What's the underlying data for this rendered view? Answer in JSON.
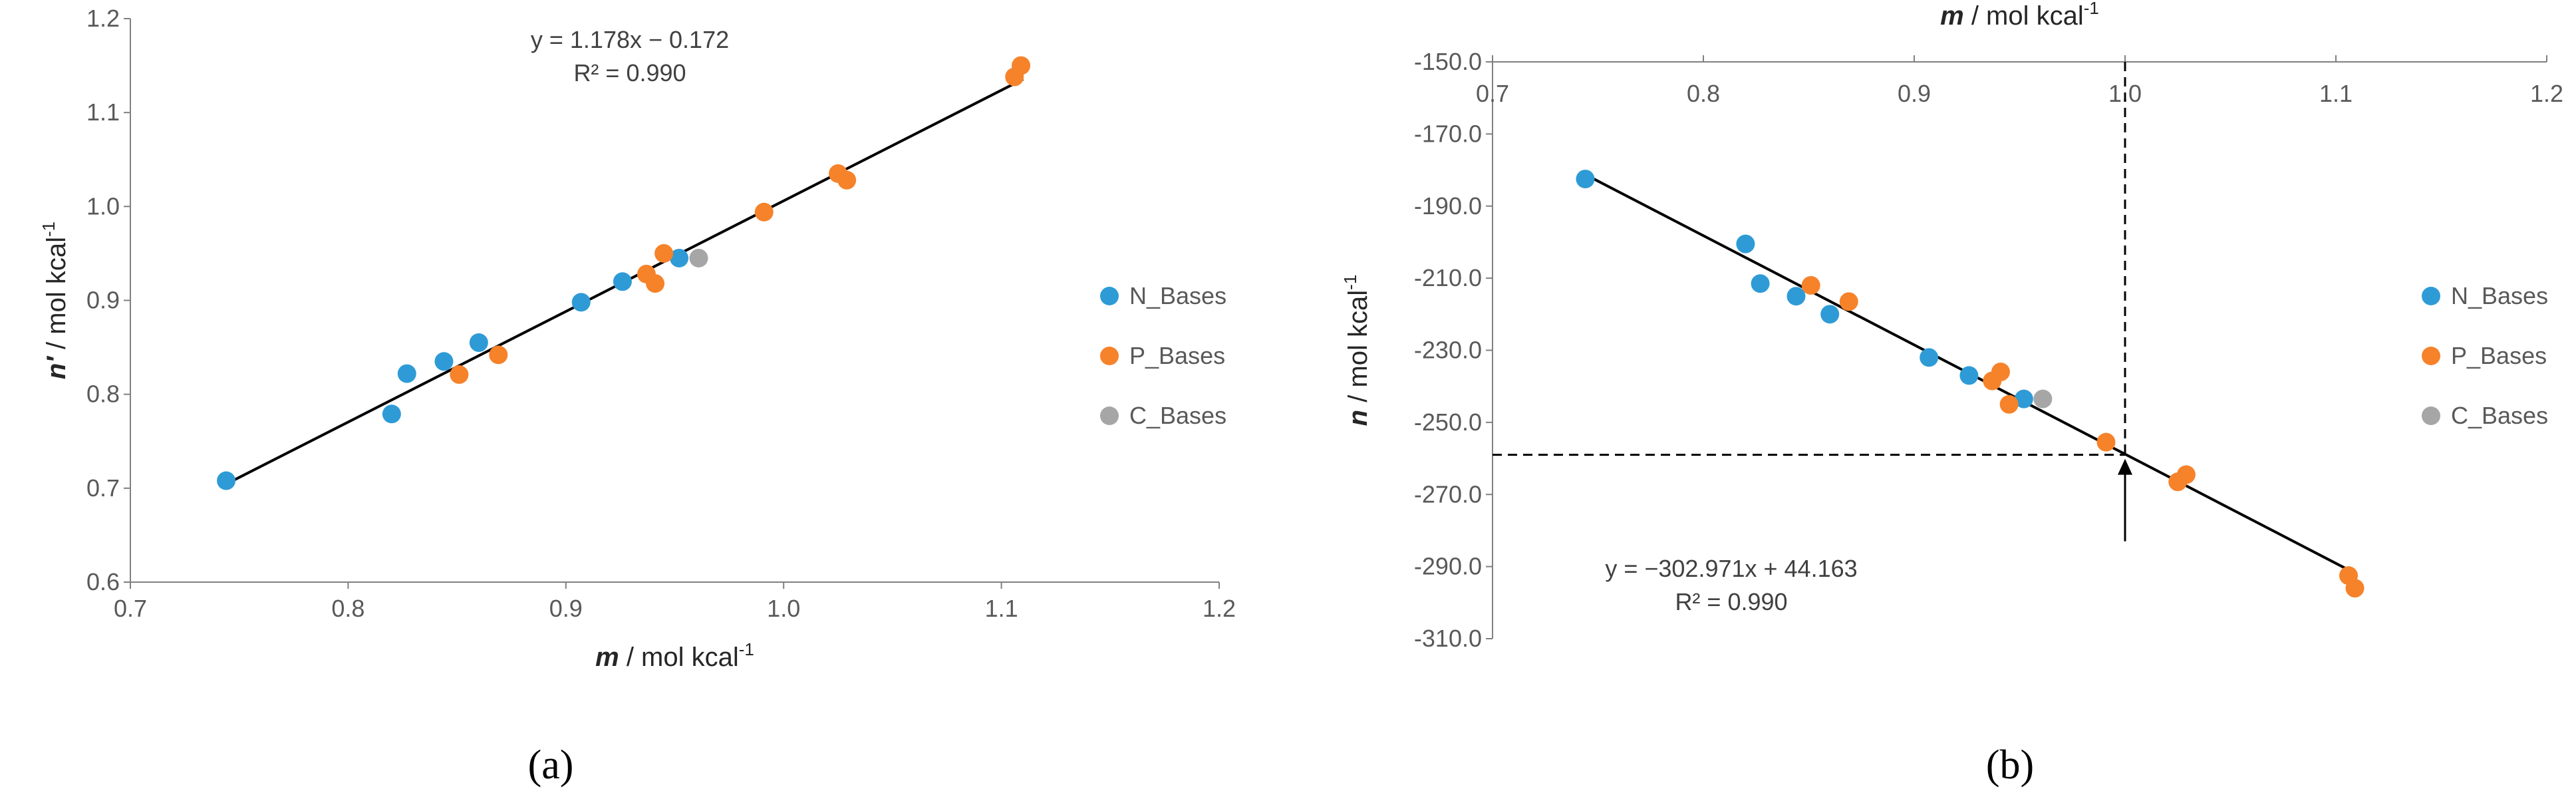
{
  "colors": {
    "N_Bases": "#2E9BD6",
    "P_Bases": "#F6822A",
    "C_Bases": "#A6A6A6",
    "axis": "#808080",
    "fit": "#000000"
  },
  "chart_data": [
    {
      "type": "scatter",
      "panel_label": "(a)",
      "xlabel_var": "m",
      "xlabel_unit": " / mol kcal",
      "xlabel_sup": "-1",
      "ylabel_var": "n′",
      "ylabel_unit": " / mol kcal",
      "ylabel_sup": "-1",
      "xlim": [
        0.7,
        1.2
      ],
      "ylim": [
        0.6,
        1.2
      ],
      "x_ticks": [
        "0.7",
        "0.8",
        "0.9",
        "1.0",
        "1.1",
        "1.2"
      ],
      "y_ticks": [
        "0.6",
        "0.7",
        "0.8",
        "0.9",
        "1.0",
        "1.1",
        "1.2"
      ],
      "grid": false,
      "legend_position": "right",
      "equation": "y = 1.178x − 0.172",
      "r2": "R² = 0.990",
      "fit": {
        "slope": 1.178,
        "intercept": -0.172,
        "x_range": [
          0.744,
          1.11
        ]
      },
      "series": [
        {
          "name": "N_Bases",
          "points": [
            [
              0.744,
              0.708
            ],
            [
              0.82,
              0.779
            ],
            [
              0.827,
              0.822
            ],
            [
              0.844,
              0.835
            ],
            [
              0.86,
              0.855
            ],
            [
              0.907,
              0.898
            ],
            [
              0.926,
              0.92
            ],
            [
              0.952,
              0.945
            ]
          ]
        },
        {
          "name": "P_Bases",
          "points": [
            [
              0.851,
              0.821
            ],
            [
              0.869,
              0.842
            ],
            [
              0.937,
              0.928
            ],
            [
              0.941,
              0.918
            ],
            [
              0.945,
              0.95
            ],
            [
              0.991,
              0.994
            ],
            [
              1.025,
              1.035
            ],
            [
              1.029,
              1.028
            ],
            [
              1.106,
              1.138
            ],
            [
              1.109,
              1.15
            ]
          ]
        },
        {
          "name": "C_Bases",
          "points": [
            [
              0.961,
              0.945
            ]
          ]
        }
      ]
    },
    {
      "type": "scatter",
      "panel_label": "(b)",
      "xlabel_var": "m",
      "xlabel_unit": " / mol kcal",
      "xlabel_sup": "-1",
      "ylabel_var": "n",
      "ylabel_unit": " / mol kcal",
      "ylabel_sup": "-1",
      "xlim": [
        0.7,
        1.2
      ],
      "ylim": [
        -310.0,
        -150.0
      ],
      "x_axis_position": "top",
      "x_ticks": [
        "0.7",
        "0.8",
        "0.9",
        "1.0",
        "1.1",
        "1.2"
      ],
      "y_ticks": [
        "-150.0",
        "-170.0",
        "-190.0",
        "-210.0",
        "-230.0",
        "-250.0",
        "-270.0",
        "-290.0",
        "-310.0"
      ],
      "grid": false,
      "legend_position": "right",
      "equation": "y = −302.971x + 44.163",
      "r2": "R² = 0.990",
      "fit": {
        "slope": -302.971,
        "intercept": 44.163,
        "x_range": [
          0.744,
          1.11
        ]
      },
      "reference": {
        "x": 1.0,
        "y": -259.0
      },
      "series": [
        {
          "name": "N_Bases",
          "points": [
            [
              0.744,
              -182.5
            ],
            [
              0.82,
              -200.5
            ],
            [
              0.827,
              -211.5
            ],
            [
              0.844,
              -215.0
            ],
            [
              0.86,
              -220.0
            ],
            [
              0.907,
              -232.0
            ],
            [
              0.926,
              -237.0
            ],
            [
              0.952,
              -243.5
            ]
          ]
        },
        {
          "name": "P_Bases",
          "points": [
            [
              0.851,
              -212.0
            ],
            [
              0.869,
              -216.5
            ],
            [
              0.937,
              -238.5
            ],
            [
              0.941,
              -236.0
            ],
            [
              0.945,
              -245.0
            ],
            [
              0.991,
              -255.5
            ],
            [
              1.025,
              -266.5
            ],
            [
              1.029,
              -264.5
            ],
            [
              1.106,
              -292.5
            ],
            [
              1.109,
              -296.0
            ]
          ]
        },
        {
          "name": "C_Bases",
          "points": [
            [
              0.961,
              -243.5
            ]
          ]
        }
      ]
    }
  ]
}
